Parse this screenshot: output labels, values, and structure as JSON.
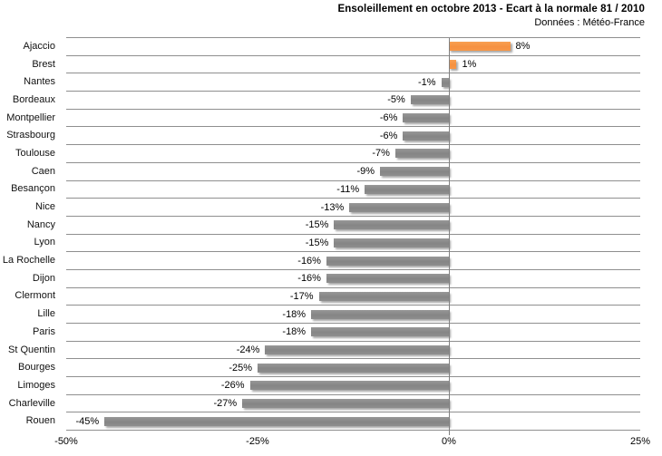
{
  "header": {
    "title": "Ensoleillement en octobre 2013 - Ecart à la normale 81 / 2010",
    "subtitle": "Données : Météo-France"
  },
  "chart_data": {
    "type": "bar",
    "orientation": "horizontal",
    "title": "Ensoleillement en octobre 2013 - Ecart à la normale 81 / 2010",
    "subtitle": "Données : Météo-France",
    "categories": [
      "Ajaccio",
      "Brest",
      "Nantes",
      "Bordeaux",
      "Montpellier",
      "Strasbourg",
      "Toulouse",
      "Caen",
      "Besançon",
      "Nice",
      "Nancy",
      "Lyon",
      "La Rochelle",
      "Dijon",
      "Clermont",
      "Lille",
      "Paris",
      "St Quentin",
      "Bourges",
      "Limoges",
      "Charleville",
      "Rouen"
    ],
    "values": [
      8,
      1,
      -1,
      -5,
      -6,
      -6,
      -7,
      -9,
      -11,
      -13,
      -15,
      -15,
      -16,
      -16,
      -17,
      -18,
      -18,
      -24,
      -25,
      -26,
      -27,
      -45
    ],
    "value_labels": [
      "8%",
      "1%",
      "-1%",
      "-5%",
      "-6%",
      "-6%",
      "-7%",
      "-9%",
      "-11%",
      "-13%",
      "-15%",
      "-15%",
      "-16%",
      "-16%",
      "-17%",
      "-18%",
      "-18%",
      "-24%",
      "-25%",
      "-26%",
      "-27%",
      "-45%"
    ],
    "xlabel": "",
    "ylabel": "",
    "xlim": [
      -50,
      25
    ],
    "xticks": [
      "-50%",
      "-25%",
      "0%",
      "25%"
    ],
    "xtick_values": [
      -50,
      -25,
      0,
      25
    ],
    "grid": "horizontal category separators, vertical line at 0 only",
    "legend": "none",
    "colors": {
      "positive_bar": "#F79646",
      "negative_bar": "#8B8B8B",
      "gridline": "#8F8F8F",
      "zero_line": "#808080",
      "text": "#000000",
      "background": "#FFFFFF"
    }
  }
}
